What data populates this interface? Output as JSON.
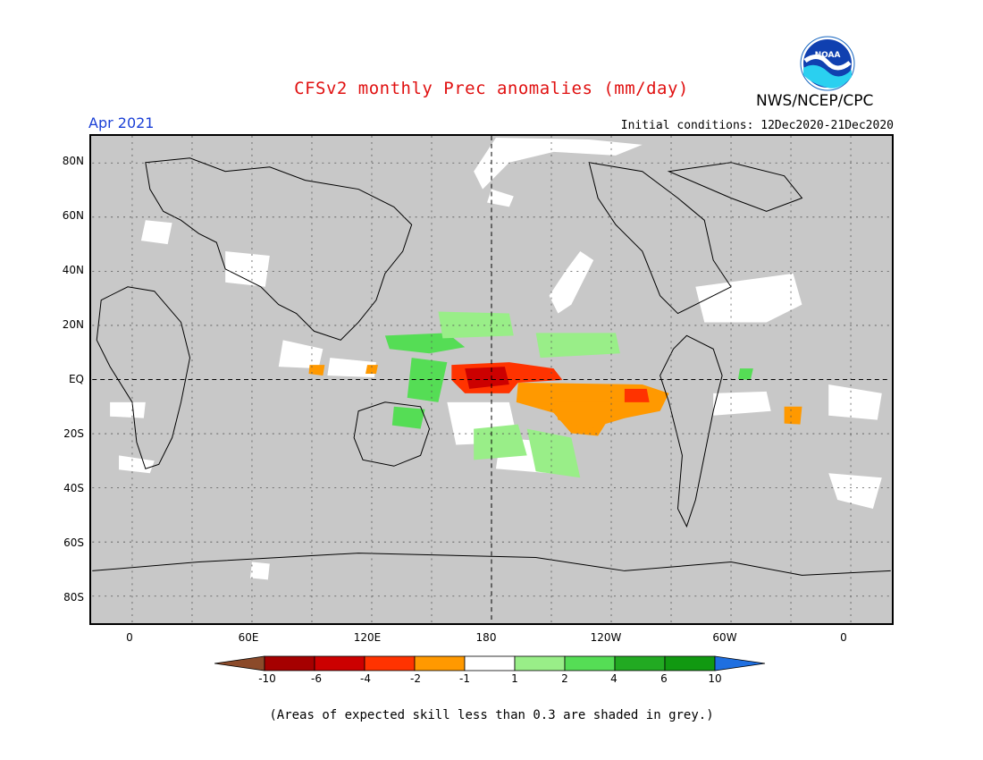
{
  "header": {
    "title": "CFSv2 monthly Prec anomalies (mm/day)",
    "agency": "NWS/NCEP/CPC",
    "logo_text": "NOAA",
    "month": "Apr 2021",
    "initial_conditions": "Initial conditions: 12Dec2020-21Dec2020"
  },
  "map": {
    "projection": "cylindrical equidistant",
    "lon_range": [
      -20,
      380
    ],
    "lat_range": [
      -90,
      90
    ],
    "background_color": "#c8c8c8",
    "lat_labels": [
      "80N",
      "60N",
      "40N",
      "20N",
      "EQ",
      "20S",
      "40S",
      "60S",
      "80S"
    ],
    "lon_labels": [
      "0",
      "60E",
      "120E",
      "180",
      "120W",
      "60W",
      "0"
    ]
  },
  "colorbar": {
    "ticks": [
      "-10",
      "-6",
      "-4",
      "-2",
      "-1",
      "1",
      "2",
      "4",
      "6",
      "10"
    ],
    "colors": [
      "#8b4a2a",
      "#a50000",
      "#cc0000",
      "#ff3300",
      "#ff9900",
      "#ffffff",
      "#99ee88",
      "#55dd55",
      "#22aa22",
      "#119911",
      "#1f6fe0"
    ]
  },
  "footnote": "(Areas of expected skill less than 0.3 are shaded in grey.)"
}
